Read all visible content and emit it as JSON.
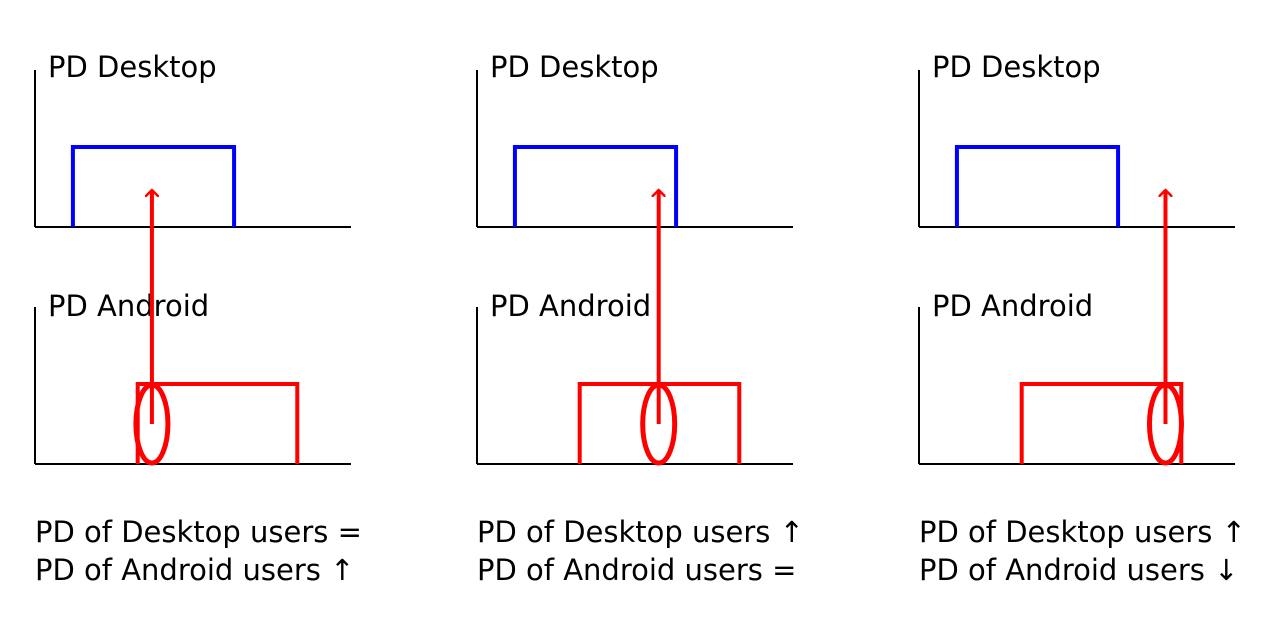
{
  "colors": {
    "desktop": "#0000ff",
    "android": "#ff0000",
    "arrow": "#ff0000",
    "axis": "#000000"
  },
  "panels": [
    {
      "top_label": "PD Desktop",
      "bottom_label": "PD Android",
      "caption_line1": "PD of Desktop users =",
      "caption_line2": "PD of Android users ↑",
      "desktop_pd": {
        "start": 0.12,
        "end": 0.63
      },
      "android_pd": {
        "start": 0.325,
        "end": 0.83
      },
      "highlight_x": 0.37,
      "arrow_hits_desktop": false
    },
    {
      "top_label": "PD Desktop",
      "bottom_label": "PD Android",
      "caption_line1": "PD of Desktop users ↑",
      "caption_line2": "PD of Android users =",
      "desktop_pd": {
        "start": 0.12,
        "end": 0.63
      },
      "android_pd": {
        "start": 0.325,
        "end": 0.83
      },
      "highlight_x": 0.575,
      "arrow_hits_desktop": true
    },
    {
      "top_label": "PD Desktop",
      "bottom_label": "PD Android",
      "caption_line1": "PD of Desktop users ↑",
      "caption_line2": "PD of Android users ↓",
      "desktop_pd": {
        "start": 0.12,
        "end": 0.63
      },
      "android_pd": {
        "start": 0.325,
        "end": 0.83
      },
      "highlight_x": 0.78,
      "arrow_hits_desktop": false
    }
  ]
}
